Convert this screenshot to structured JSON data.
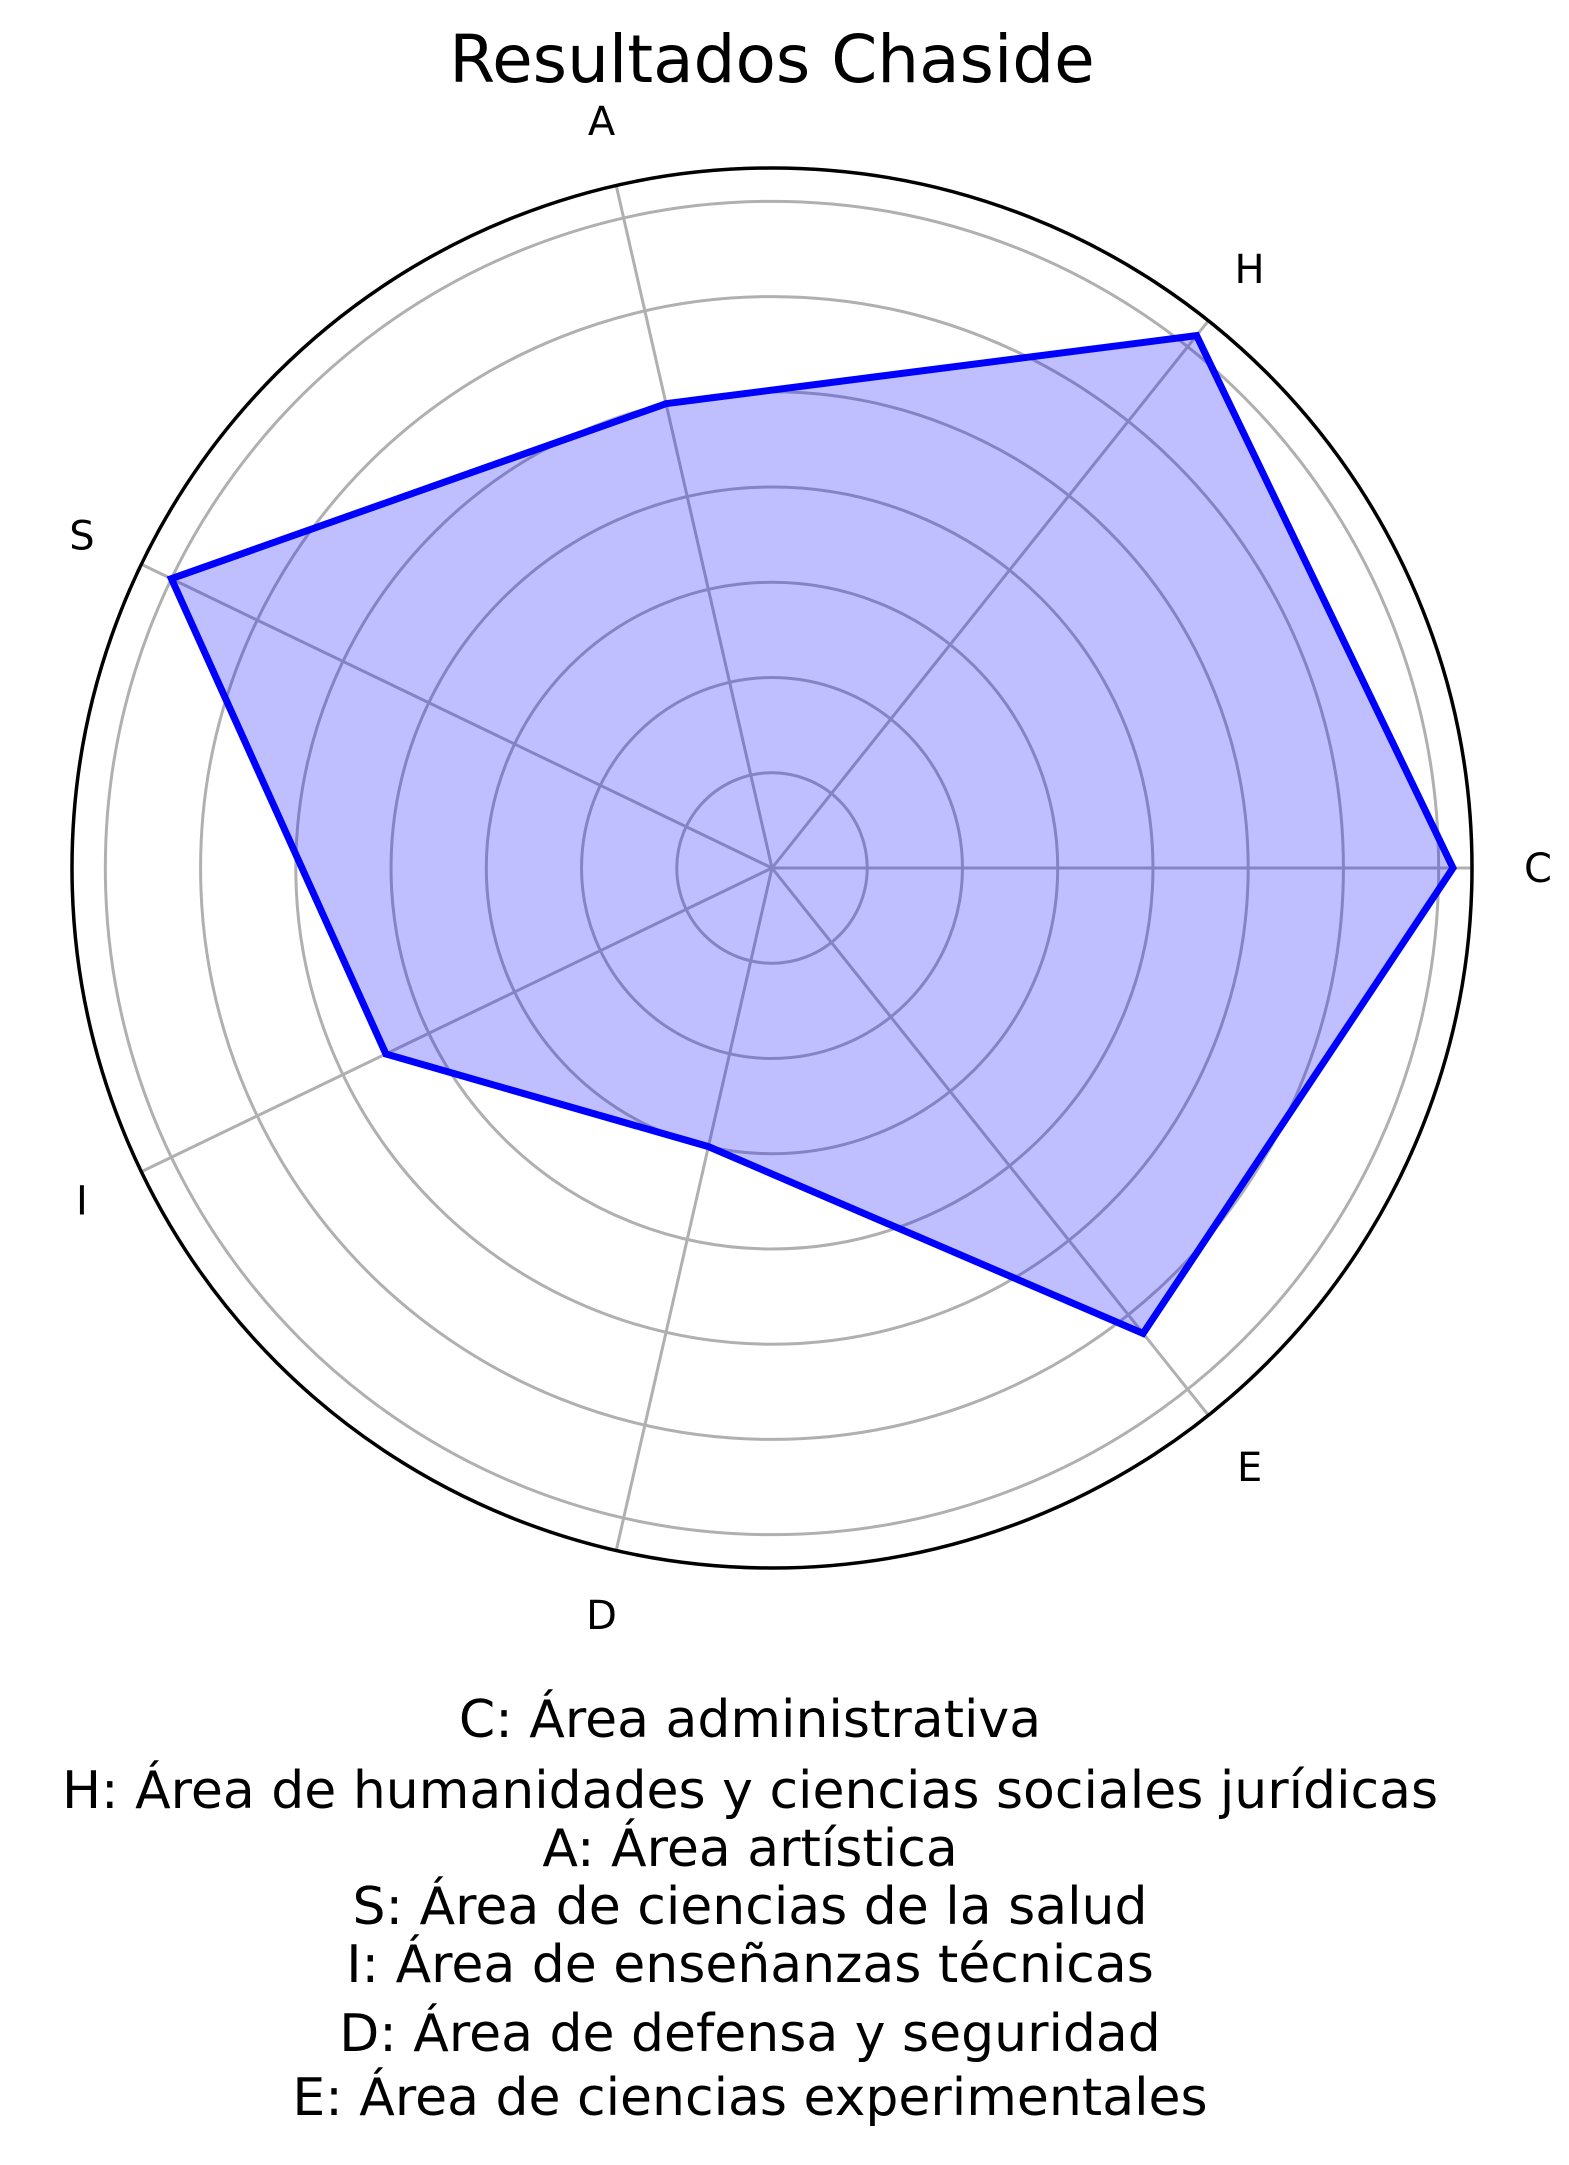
{
  "chart_data": {
    "type": "radar",
    "title": "Resultados Chaside",
    "categories": [
      "C",
      "H",
      "A",
      "S",
      "I",
      "D",
      "E"
    ],
    "series": [
      {
        "values": [
          14.3,
          14.3,
          10.0,
          14.0,
          9.0,
          6.0,
          12.5
        ],
        "color": "#0000ff",
        "fill_color": "#0000ff",
        "fill_opacity": 0.25
      }
    ],
    "rlim": [
      0,
      14.7
    ],
    "ring_values": [
      2,
      4,
      6,
      8,
      10,
      12,
      14
    ],
    "radial_tick_labels_shown": false,
    "grid": true,
    "grid_color": "#b0b0b0"
  },
  "legend_lines": [
    "C: Área administrativa",
    "H: Área de humanidades y ciencias sociales jurídicas",
    "A: Área artística",
    "S: Área de ciencias de la salud",
    "I: Área de enseñanzas técnicas",
    "D: Área de defensa y seguridad",
    "E: Área de ciencias experimentales"
  ]
}
